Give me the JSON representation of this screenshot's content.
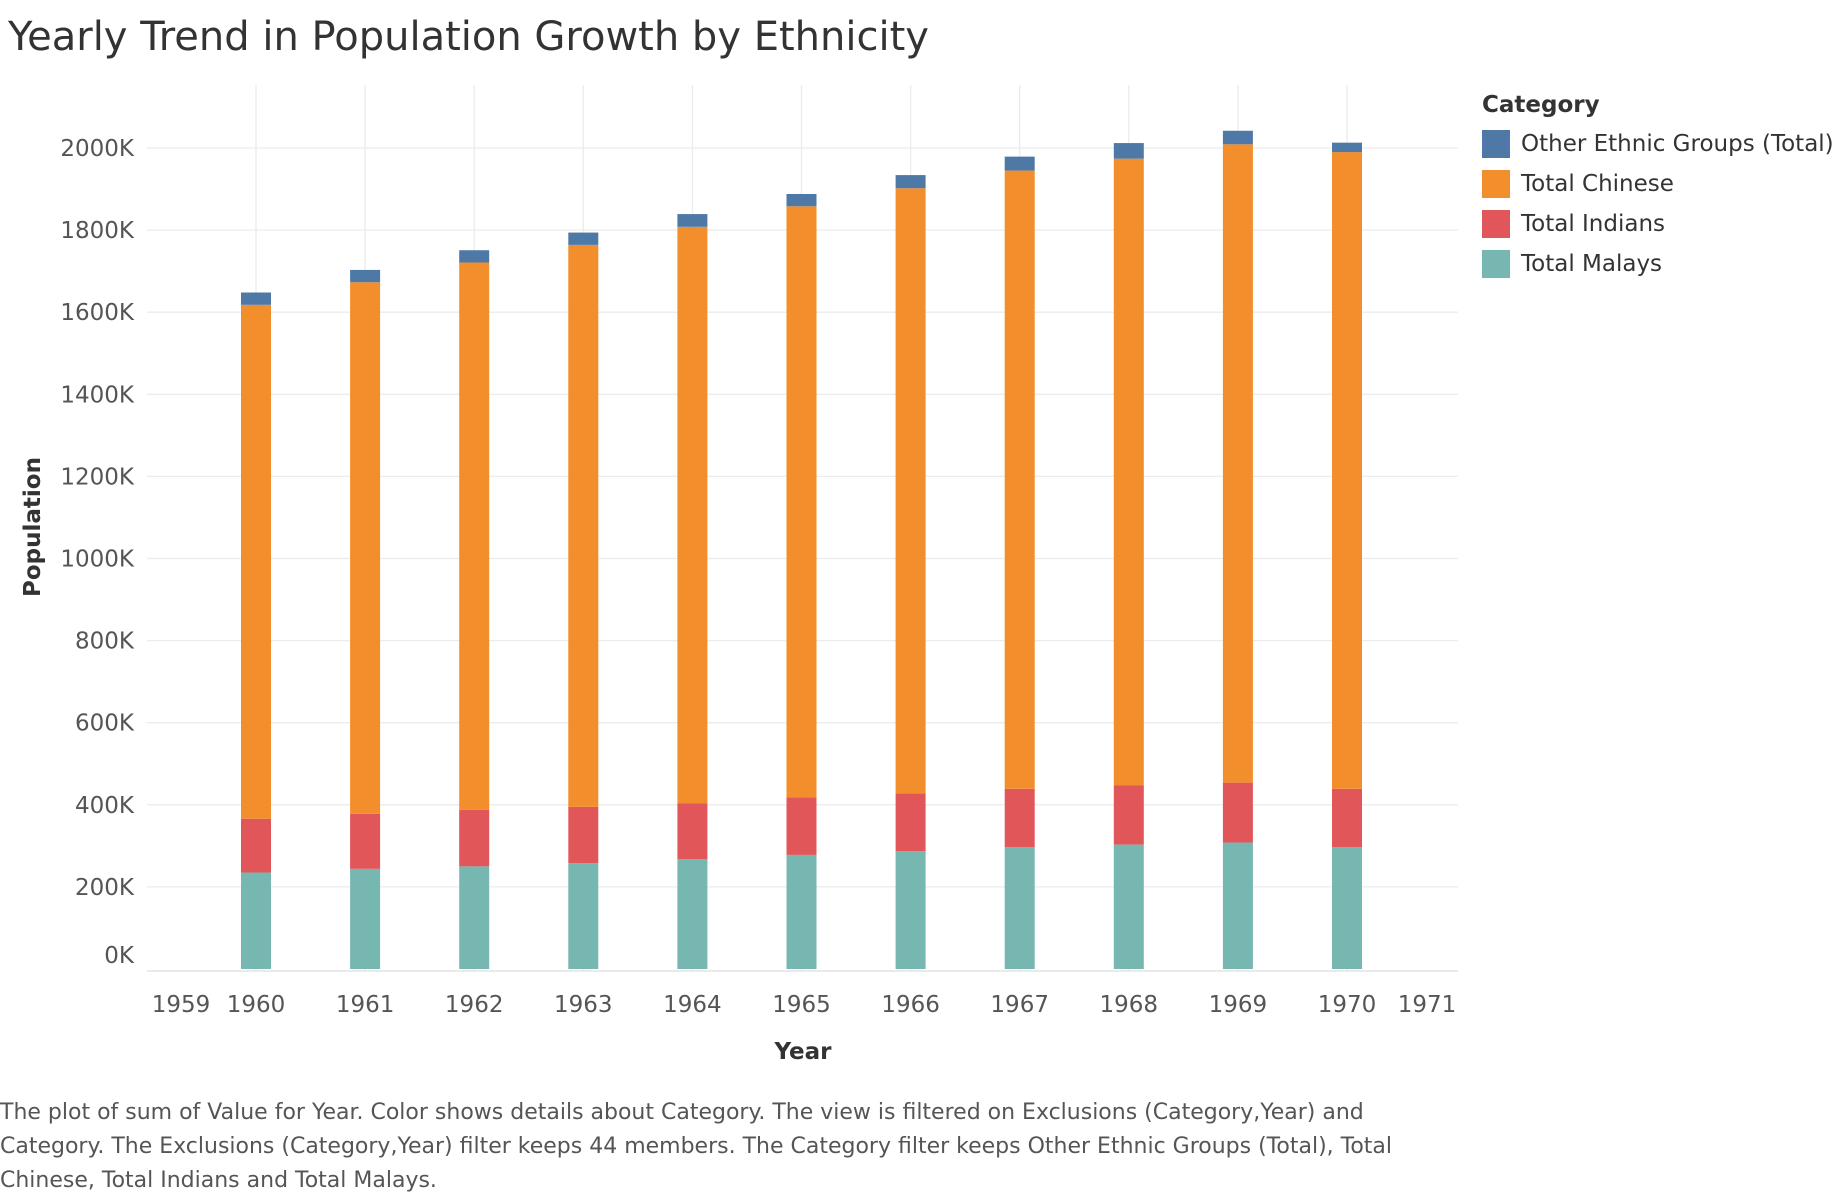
{
  "title": "Yearly Trend in Population Growth by Ethnicity",
  "legend": {
    "title": "Category",
    "items": [
      {
        "label": "Other Ethnic Groups (Total)",
        "color": "#4e79a7"
      },
      {
        "label": "Total Chinese",
        "color": "#f28e2b"
      },
      {
        "label": "Total Indians",
        "color": "#e15759"
      },
      {
        "label": "Total Malays",
        "color": "#76b7b2"
      }
    ]
  },
  "caption": "The plot of sum of Value for Year.  Color shows details about Category. The view is filtered on Exclusions (Category,Year) and Category. The Exclusions (Category,Year) filter keeps 44 members. The Category filter keeps Other Ethnic Groups (Total), Total Chinese, Total Indians and Total Malays.",
  "chart_data": {
    "type": "bar",
    "stacked": true,
    "xlabel": "Year",
    "ylabel": "Population",
    "x_ticks": [
      1959,
      1960,
      1961,
      1962,
      1963,
      1964,
      1965,
      1966,
      1967,
      1968,
      1969,
      1970,
      1971
    ],
    "xlim": [
      1959,
      1971
    ],
    "y_ticks": [
      "0K",
      "200K",
      "400K",
      "600K",
      "800K",
      "1000K",
      "1200K",
      "1400K",
      "1600K",
      "1800K",
      "2000K"
    ],
    "y_tick_values": [
      0,
      200000,
      400000,
      600000,
      800000,
      1000000,
      1200000,
      1400000,
      1600000,
      1800000,
      2000000
    ],
    "ylim": [
      0,
      2150000
    ],
    "grid": true,
    "legend_position": "right",
    "categories": [
      1960,
      1961,
      1962,
      1963,
      1964,
      1965,
      1966,
      1967,
      1968,
      1969,
      1970
    ],
    "series": [
      {
        "name": "Total Malays",
        "color": "#76b7b2",
        "values": [
          235000,
          244000,
          250000,
          258000,
          268000,
          278000,
          287000,
          297000,
          303000,
          308000,
          297000
        ]
      },
      {
        "name": "Total Indians",
        "color": "#e15759",
        "values": [
          131000,
          134000,
          138000,
          137000,
          136000,
          140000,
          141000,
          142000,
          144000,
          146000,
          142000
        ]
      },
      {
        "name": "Total Chinese",
        "color": "#f28e2b",
        "values": [
          1252000,
          1295000,
          1333000,
          1369000,
          1404000,
          1440000,
          1474000,
          1506000,
          1527000,
          1555000,
          1551000
        ]
      },
      {
        "name": "Other Ethnic Groups (Total)",
        "color": "#4e79a7",
        "values": [
          30000,
          30000,
          30000,
          30000,
          31000,
          30000,
          32000,
          34000,
          38000,
          33000,
          23000
        ]
      }
    ]
  }
}
